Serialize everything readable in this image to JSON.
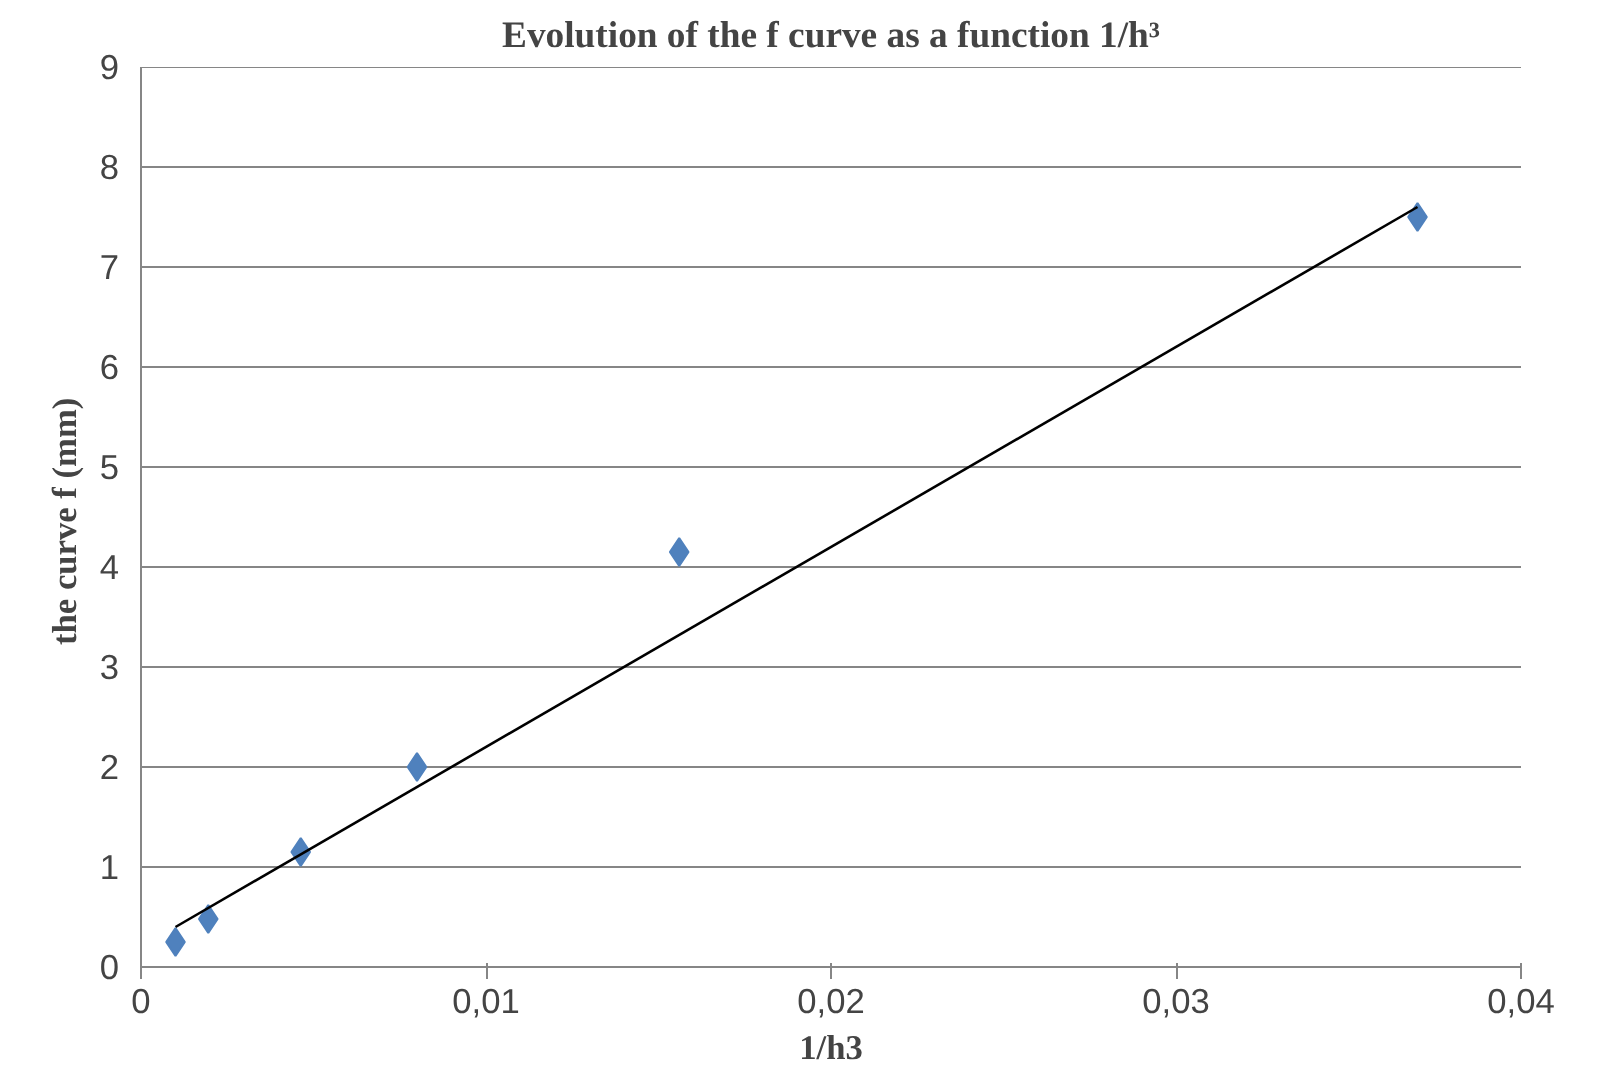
{
  "chart_data": {
    "type": "scatter",
    "title": "Evolution of the f curve as a function 1/h³",
    "xlabel": "1/h3",
    "ylabel": "the curve  f (mm)",
    "x": [
      0.001,
      0.00195,
      0.00463,
      0.008,
      0.0156,
      0.037
    ],
    "series": [
      {
        "color": "#4f81bd",
        "values": [
          0.25,
          0.48,
          1.15,
          2.0,
          4.15,
          7.5
        ],
        "marker": "diamond"
      },
      {
        "type": "line",
        "color": "#000000",
        "x": [
          0.001,
          0.037
        ],
        "values": [
          0.4,
          7.6
        ]
      }
    ],
    "xlim": [
      0,
      0.04
    ],
    "ylim": [
      0,
      9
    ],
    "xticks": [
      0,
      {
        "value": 0.01,
        "label": "0,01"
      },
      {
        "value": 0.02,
        "label": "0,02"
      },
      {
        "value": 0.03,
        "label": "0,03"
      },
      {
        "value": 0.04,
        "label": "0,04"
      }
    ],
    "yticks": [
      0,
      1,
      2,
      3,
      4,
      5,
      6,
      7,
      8,
      9
    ],
    "grid": "y"
  }
}
